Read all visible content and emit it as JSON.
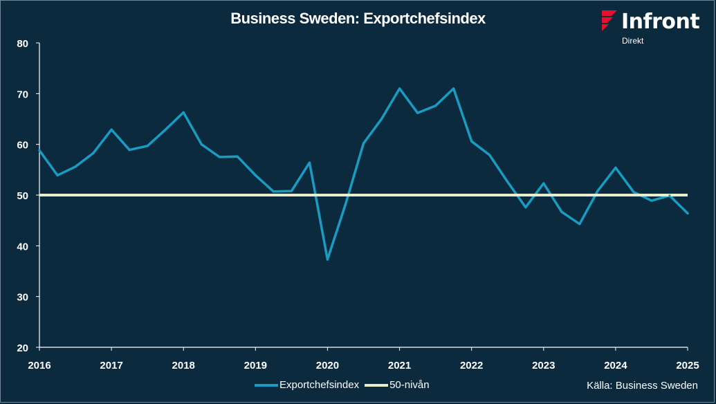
{
  "chart_data": {
    "type": "line",
    "title": "Business Sweden: Exportchefsindex",
    "xlabel": "",
    "ylabel": "",
    "ylim": [
      20,
      80
    ],
    "yticks": [
      20,
      30,
      40,
      50,
      60,
      70,
      80
    ],
    "xlim": [
      2016,
      2025
    ],
    "xticks": [
      2016,
      2017,
      2018,
      2019,
      2020,
      2021,
      2022,
      2023,
      2024,
      2025
    ],
    "series": [
      {
        "name": "Exportchefsindex",
        "color": "#1a9bc1",
        "x": [
          2016.0,
          2016.25,
          2016.5,
          2016.75,
          2017.0,
          2017.25,
          2017.5,
          2017.75,
          2018.0,
          2018.25,
          2018.5,
          2018.75,
          2019.0,
          2019.25,
          2019.5,
          2019.75,
          2020.0,
          2020.25,
          2020.5,
          2020.75,
          2021.0,
          2021.25,
          2021.5,
          2021.75,
          2022.0,
          2022.25,
          2022.5,
          2022.75,
          2023.0,
          2023.25,
          2023.5,
          2023.75,
          2024.0,
          2024.25,
          2024.5,
          2024.75,
          2025.0
        ],
        "values": [
          58.8,
          53.9,
          55.6,
          58.3,
          62.9,
          58.9,
          59.7,
          62.9,
          66.3,
          60.0,
          57.5,
          57.6,
          53.9,
          50.7,
          50.8,
          56.4,
          37.3,
          48.2,
          60.2,
          65.0,
          71.0,
          66.2,
          67.6,
          71.0,
          60.6,
          57.9,
          52.6,
          47.6,
          52.3,
          46.7,
          44.3,
          50.8,
          55.4,
          50.6,
          48.9,
          49.9,
          46.4
        ]
      },
      {
        "name": "50-nivån",
        "color": "#e8eecb",
        "x": [
          2016.0,
          2025.0
        ],
        "values": [
          50,
          50
        ]
      }
    ],
    "legend": [
      "Exportchefsindex",
      "50-nivån"
    ],
    "legend_position": "bottom-center",
    "source": "Källa:  Business Sweden"
  },
  "logo": {
    "name": "Infront",
    "subtitle": "Direkt"
  }
}
